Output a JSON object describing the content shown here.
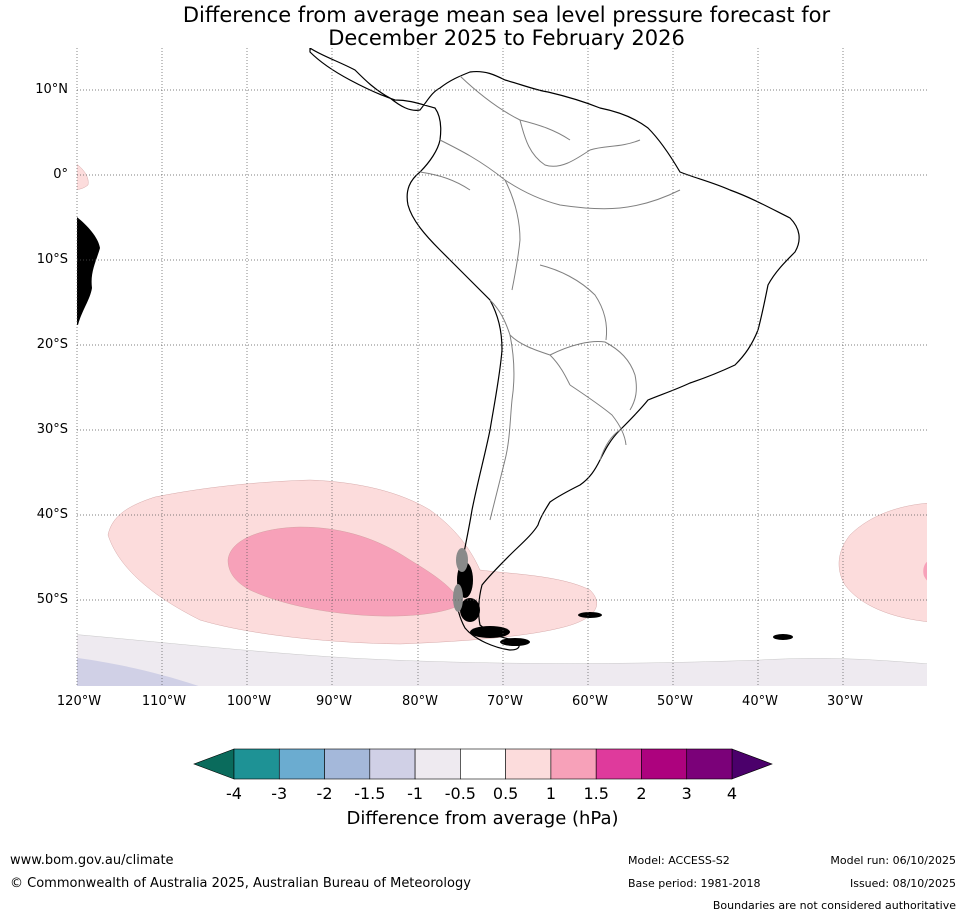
{
  "title": {
    "line1": "Difference from average mean sea level pressure forecast for",
    "line2": "December 2025 to February 2026"
  },
  "map": {
    "lat_labels": [
      "10°N",
      "0°",
      "10°S",
      "20°S",
      "30°S",
      "40°S",
      "50°S"
    ],
    "lon_labels": [
      "120°W",
      "110°W",
      "100°W",
      "90°W",
      "80°W",
      "70°W",
      "60°W",
      "50°W",
      "40°W",
      "30°W"
    ],
    "anomaly_regions": [
      {
        "name": "south-pacific-high-anomaly",
        "level": "0.5 to 1",
        "color": "#fcdcdc"
      },
      {
        "name": "south-pacific-core-anomaly",
        "level": "1 to 1.5",
        "color": "#f7a1b9"
      },
      {
        "name": "south-atlantic-anomaly",
        "level": "0.5 to 1",
        "color": "#fcdcdc"
      },
      {
        "name": "eastern-pacific-equatorial-anomaly",
        "level": "0.5 to 1",
        "color": "#fcdcdc"
      },
      {
        "name": "southern-ocean-negative-anomaly",
        "level": "-0.5 to -1",
        "color": "#eeeaf0"
      },
      {
        "name": "southern-ocean-negative-anomaly-2",
        "level": "-1 to -1.5",
        "color": "#d0d0e6"
      }
    ]
  },
  "colorbar": {
    "colors": [
      "#1e9295",
      "#6bacd0",
      "#a4b8da",
      "#d0d0e6",
      "#eeeaf0",
      "#ffffff",
      "#fcdcdc",
      "#f7a1b9",
      "#df3a9c",
      "#ad027e",
      "#7b0179"
    ],
    "under_color": "#0a6b5c",
    "over_color": "#4b006b",
    "ticks": [
      "-4",
      "-3",
      "-2",
      "-1.5",
      "-1",
      "-0.5",
      "0.5",
      "1",
      "1.5",
      "2",
      "3",
      "4"
    ],
    "label": "Difference from average (hPa)"
  },
  "footer": {
    "website": "www.bom.gov.au/climate",
    "copyright": "© Commonwealth of Australia 2025, Australian Bureau of Meteorology",
    "model": "Model: ACCESS-S2",
    "base_period": "Base period: 1981-2018",
    "model_run": "Model run: 06/10/2025",
    "issued": "Issued: 08/10/2025",
    "disclaimer": "Boundaries are not considered authoritative"
  }
}
